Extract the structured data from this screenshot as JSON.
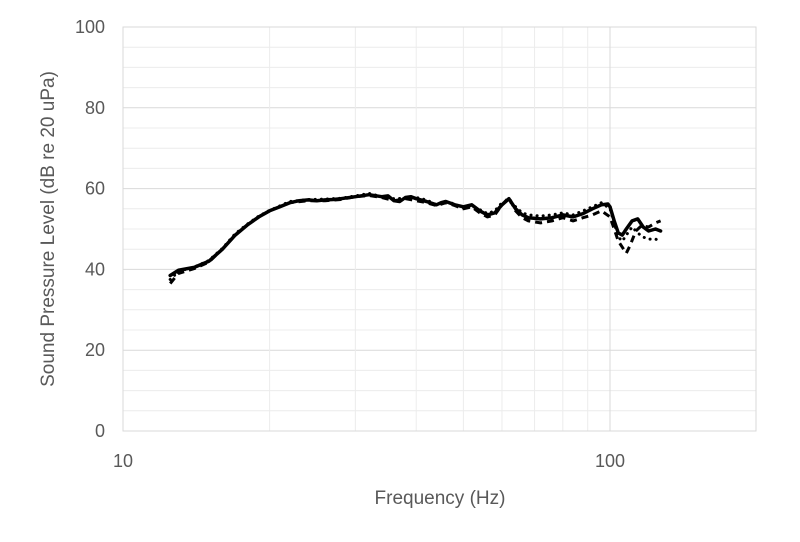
{
  "chart_data": {
    "type": "line",
    "title": "",
    "xlabel": "Frequency (Hz)",
    "ylabel": "Sound Pressure Level (dB re 20 uPa)",
    "x_scale": "log",
    "xlim": [
      10,
      200
    ],
    "ylim": [
      0,
      100
    ],
    "x_ticks": [
      10,
      100
    ],
    "x_tick_labels": [
      "10",
      "100"
    ],
    "y_ticks": [
      0,
      20,
      40,
      60,
      80,
      100
    ],
    "y_tick_labels": [
      "0",
      "20",
      "40",
      "60",
      "80",
      "100"
    ],
    "grid": true,
    "legend": "none",
    "colors": {
      "series": "#000000",
      "grid": "#d9d9d9",
      "text": "#595959"
    },
    "series": [
      {
        "style": "solid",
        "points": [
          [
            12.5,
            38.5
          ],
          [
            13.0,
            39.8
          ],
          [
            14.0,
            40.5
          ],
          [
            15.0,
            42.0
          ],
          [
            16.0,
            45.0
          ],
          [
            17.0,
            48.5
          ],
          [
            18.0,
            51.0
          ],
          [
            19.0,
            53.0
          ],
          [
            20.0,
            54.5
          ],
          [
            21.0,
            55.5
          ],
          [
            22.0,
            56.5
          ],
          [
            23.0,
            57.0
          ],
          [
            24.0,
            57.2
          ],
          [
            25.0,
            57.0
          ],
          [
            26.0,
            57.2
          ],
          [
            27.0,
            57.3
          ],
          [
            28.0,
            57.5
          ],
          [
            30.0,
            58.0
          ],
          [
            32.0,
            58.5
          ],
          [
            34.0,
            58.0
          ],
          [
            35.0,
            58.2
          ],
          [
            36.0,
            57.0
          ],
          [
            37.0,
            56.8
          ],
          [
            38.0,
            57.8
          ],
          [
            39.0,
            58.0
          ],
          [
            40.0,
            57.5
          ],
          [
            42.0,
            56.8
          ],
          [
            44.0,
            56.0
          ],
          [
            45.0,
            56.5
          ],
          [
            46.0,
            56.8
          ],
          [
            48.0,
            56.0
          ],
          [
            50.0,
            55.5
          ],
          [
            52.0,
            56.0
          ],
          [
            54.0,
            54.5
          ],
          [
            56.0,
            53.5
          ],
          [
            58.0,
            54.0
          ],
          [
            60.0,
            56.0
          ],
          [
            62.0,
            57.5
          ],
          [
            64.0,
            55.0
          ],
          [
            66.0,
            53.5
          ],
          [
            68.0,
            52.8
          ],
          [
            72.0,
            52.5
          ],
          [
            76.0,
            52.8
          ],
          [
            80.0,
            53.5
          ],
          [
            84.0,
            53.0
          ],
          [
            88.0,
            53.8
          ],
          [
            92.0,
            55.0
          ],
          [
            96.0,
            56.0
          ],
          [
            99.0,
            56.2
          ],
          [
            100.0,
            55.5
          ],
          [
            102.0,
            52.0
          ],
          [
            104.0,
            49.0
          ],
          [
            106.0,
            48.5
          ],
          [
            108.0,
            50.0
          ],
          [
            111.0,
            52.0
          ],
          [
            114.0,
            52.5
          ],
          [
            117.0,
            50.5
          ],
          [
            120.0,
            49.5
          ],
          [
            124.0,
            50.0
          ],
          [
            127.0,
            49.5
          ]
        ]
      },
      {
        "style": "dashed",
        "points": [
          [
            12.5,
            36.5
          ],
          [
            13.0,
            39.0
          ],
          [
            14.0,
            40.2
          ],
          [
            15.0,
            41.8
          ],
          [
            16.0,
            45.0
          ],
          [
            17.0,
            48.5
          ],
          [
            18.0,
            51.0
          ],
          [
            19.0,
            53.0
          ],
          [
            20.0,
            54.5
          ],
          [
            22.0,
            56.5
          ],
          [
            24.0,
            57.0
          ],
          [
            26.0,
            57.0
          ],
          [
            28.0,
            57.3
          ],
          [
            30.0,
            58.0
          ],
          [
            32.0,
            58.3
          ],
          [
            34.0,
            57.8
          ],
          [
            36.0,
            57.0
          ],
          [
            38.0,
            57.5
          ],
          [
            40.0,
            57.0
          ],
          [
            42.0,
            56.5
          ],
          [
            44.0,
            55.8
          ],
          [
            46.0,
            56.5
          ],
          [
            48.0,
            55.8
          ],
          [
            50.0,
            55.0
          ],
          [
            52.0,
            55.5
          ],
          [
            54.0,
            54.0
          ],
          [
            56.0,
            53.0
          ],
          [
            58.0,
            53.5
          ],
          [
            60.0,
            56.0
          ],
          [
            62.0,
            57.8
          ],
          [
            64.0,
            54.5
          ],
          [
            66.0,
            52.8
          ],
          [
            68.0,
            52.0
          ],
          [
            72.0,
            51.5
          ],
          [
            76.0,
            52.0
          ],
          [
            80.0,
            52.8
          ],
          [
            84.0,
            52.0
          ],
          [
            88.0,
            52.8
          ],
          [
            92.0,
            53.5
          ],
          [
            96.0,
            54.5
          ],
          [
            100.0,
            53.0
          ],
          [
            102.0,
            50.0
          ],
          [
            104.0,
            47.0
          ],
          [
            106.0,
            45.5
          ],
          [
            108.0,
            44.0
          ],
          [
            110.0,
            46.0
          ],
          [
            113.0,
            49.5
          ],
          [
            116.0,
            50.8
          ],
          [
            120.0,
            50.5
          ],
          [
            124.0,
            51.5
          ],
          [
            127.0,
            52.0
          ]
        ]
      },
      {
        "style": "dotted",
        "points": [
          [
            12.5,
            37.5
          ],
          [
            13.0,
            39.5
          ],
          [
            14.0,
            40.6
          ],
          [
            15.0,
            42.2
          ],
          [
            16.0,
            45.2
          ],
          [
            17.0,
            48.8
          ],
          [
            18.0,
            51.2
          ],
          [
            19.0,
            53.2
          ],
          [
            20.0,
            54.6
          ],
          [
            22.0,
            56.8
          ],
          [
            24.0,
            57.3
          ],
          [
            26.0,
            57.4
          ],
          [
            28.0,
            57.6
          ],
          [
            30.0,
            58.2
          ],
          [
            32.0,
            58.8
          ],
          [
            34.0,
            58.0
          ],
          [
            36.0,
            57.5
          ],
          [
            38.0,
            57.6
          ],
          [
            40.0,
            57.8
          ],
          [
            42.0,
            57.2
          ],
          [
            44.0,
            56.0
          ],
          [
            46.0,
            56.8
          ],
          [
            48.0,
            56.2
          ],
          [
            50.0,
            55.2
          ],
          [
            52.0,
            55.8
          ],
          [
            54.0,
            54.8
          ],
          [
            56.0,
            53.8
          ],
          [
            58.0,
            54.5
          ],
          [
            60.0,
            56.5
          ],
          [
            62.0,
            57.0
          ],
          [
            64.0,
            55.5
          ],
          [
            66.0,
            54.0
          ],
          [
            68.0,
            53.5
          ],
          [
            72.0,
            53.2
          ],
          [
            76.0,
            53.5
          ],
          [
            80.0,
            54.0
          ],
          [
            84.0,
            53.5
          ],
          [
            88.0,
            54.5
          ],
          [
            92.0,
            55.5
          ],
          [
            96.0,
            56.5
          ],
          [
            100.0,
            55.0
          ],
          [
            102.0,
            51.5
          ],
          [
            104.0,
            48.0
          ],
          [
            106.0,
            47.0
          ],
          [
            108.0,
            48.5
          ],
          [
            111.0,
            50.5
          ],
          [
            114.0,
            49.0
          ],
          [
            117.0,
            48.0
          ],
          [
            120.0,
            47.5
          ],
          [
            124.0,
            47.5
          ],
          [
            127.0,
            47.0
          ]
        ]
      }
    ]
  }
}
